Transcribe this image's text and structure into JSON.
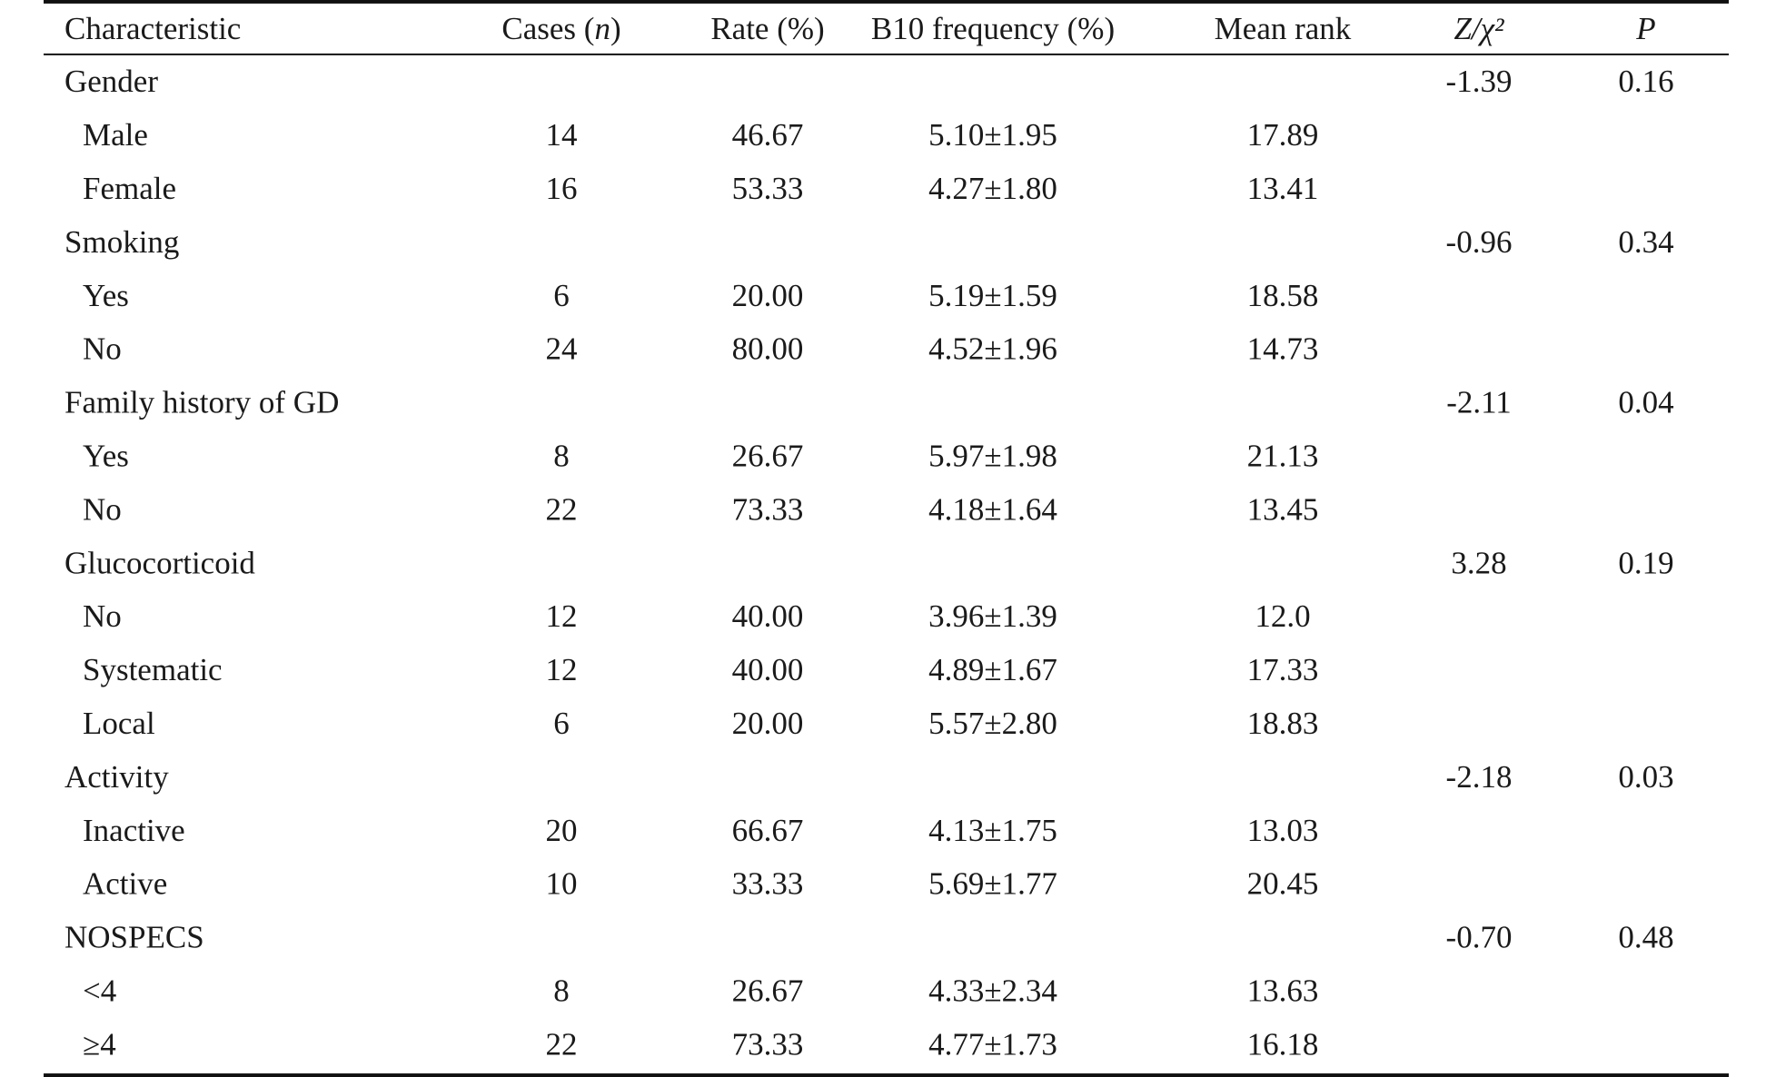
{
  "table": {
    "header": {
      "characteristic": "Characteristic",
      "cases_pre": "Cases (",
      "cases_n": "n",
      "cases_post": ")",
      "rate": "Rate (%)",
      "b10": "B10 frequency (%)",
      "mean_rank": "Mean rank",
      "zchi": "Z/χ²",
      "p": "P"
    },
    "rows": [
      {
        "label": "Gender",
        "sub": false,
        "cases": "",
        "rate": "",
        "b10": "",
        "mean_rank": "",
        "z": "-1.39",
        "p": "0.16"
      },
      {
        "label": "Male",
        "sub": true,
        "cases": "14",
        "rate": "46.67",
        "b10": "5.10±1.95",
        "mean_rank": "17.89",
        "z": "",
        "p": ""
      },
      {
        "label": "Female",
        "sub": true,
        "cases": "16",
        "rate": "53.33",
        "b10": "4.27±1.80",
        "mean_rank": "13.41",
        "z": "",
        "p": ""
      },
      {
        "label": "Smoking",
        "sub": false,
        "cases": "",
        "rate": "",
        "b10": "",
        "mean_rank": "",
        "z": "-0.96",
        "p": "0.34"
      },
      {
        "label": "Yes",
        "sub": true,
        "cases": "6",
        "rate": "20.00",
        "b10": "5.19±1.59",
        "mean_rank": "18.58",
        "z": "",
        "p": ""
      },
      {
        "label": "No",
        "sub": true,
        "cases": "24",
        "rate": "80.00",
        "b10": "4.52±1.96",
        "mean_rank": "14.73",
        "z": "",
        "p": ""
      },
      {
        "label": "Family history of GD",
        "sub": false,
        "cases": "",
        "rate": "",
        "b10": "",
        "mean_rank": "",
        "z": "-2.11",
        "p": "0.04"
      },
      {
        "label": "Yes",
        "sub": true,
        "cases": "8",
        "rate": "26.67",
        "b10": "5.97±1.98",
        "mean_rank": "21.13",
        "z": "",
        "p": ""
      },
      {
        "label": "No",
        "sub": true,
        "cases": "22",
        "rate": "73.33",
        "b10": "4.18±1.64",
        "mean_rank": "13.45",
        "z": "",
        "p": ""
      },
      {
        "label": "Glucocorticoid",
        "sub": false,
        "cases": "",
        "rate": "",
        "b10": "",
        "mean_rank": "",
        "z": "3.28",
        "p": "0.19"
      },
      {
        "label": "No",
        "sub": true,
        "cases": "12",
        "rate": "40.00",
        "b10": "3.96±1.39",
        "mean_rank": "12.0",
        "z": "",
        "p": ""
      },
      {
        "label": "Systematic",
        "sub": true,
        "cases": "12",
        "rate": "40.00",
        "b10": "4.89±1.67",
        "mean_rank": "17.33",
        "z": "",
        "p": ""
      },
      {
        "label": "Local",
        "sub": true,
        "cases": "6",
        "rate": "20.00",
        "b10": "5.57±2.80",
        "mean_rank": "18.83",
        "z": "",
        "p": ""
      },
      {
        "label": "Activity",
        "sub": false,
        "cases": "",
        "rate": "",
        "b10": "",
        "mean_rank": "",
        "z": "-2.18",
        "p": "0.03"
      },
      {
        "label": "Inactive",
        "sub": true,
        "cases": "20",
        "rate": "66.67",
        "b10": "4.13±1.75",
        "mean_rank": "13.03",
        "z": "",
        "p": ""
      },
      {
        "label": "Active",
        "sub": true,
        "cases": "10",
        "rate": "33.33",
        "b10": "5.69±1.77",
        "mean_rank": "20.45",
        "z": "",
        "p": ""
      },
      {
        "label": "NOSPECS",
        "sub": false,
        "cases": "",
        "rate": "",
        "b10": "",
        "mean_rank": "",
        "z": "-0.70",
        "p": "0.48"
      },
      {
        "label": "<4",
        "sub": true,
        "cases": "8",
        "rate": "26.67",
        "b10": "4.33±2.34",
        "mean_rank": "13.63",
        "z": "",
        "p": ""
      },
      {
        "label": "≥4",
        "sub": true,
        "cases": "22",
        "rate": "73.33",
        "b10": "4.77±1.73",
        "mean_rank": "16.18",
        "z": "",
        "p": ""
      }
    ]
  }
}
